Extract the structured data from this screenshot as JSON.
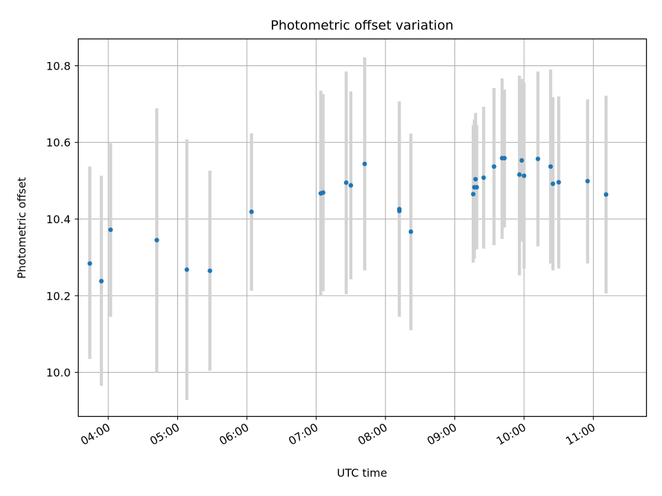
{
  "chart_data": {
    "type": "scatter",
    "title": "Photometric offset variation",
    "xlabel": "UTC time",
    "ylabel": "Photometric offset",
    "x_ticks": [
      "04:00",
      "05:00",
      "06:00",
      "07:00",
      "08:00",
      "09:00",
      "10:00",
      "11:00"
    ],
    "y_ticks": [
      "10.0",
      "10.2",
      "10.4",
      "10.6",
      "10.8"
    ],
    "xlim": [
      "03:34",
      "11:46"
    ],
    "ylim": [
      9.885,
      10.87
    ],
    "grid": true,
    "colors": {
      "point": "#1f77b4",
      "errorbar": "#d3d3d3",
      "grid": "#b0b0b0"
    },
    "points": [
      {
        "x": "03:44",
        "y": 10.284,
        "ylow": 10.035,
        "yhigh": 10.537
      },
      {
        "x": "03:54",
        "y": 10.238,
        "ylow": 9.965,
        "yhigh": 10.513
      },
      {
        "x": "04:02",
        "y": 10.372,
        "ylow": 10.145,
        "yhigh": 10.598
      },
      {
        "x": "04:42",
        "y": 10.345,
        "ylow": 10.0,
        "yhigh": 10.689
      },
      {
        "x": "05:08",
        "y": 10.268,
        "ylow": 9.928,
        "yhigh": 10.608
      },
      {
        "x": "05:28",
        "y": 10.265,
        "ylow": 10.004,
        "yhigh": 10.526
      },
      {
        "x": "06:04",
        "y": 10.419,
        "ylow": 10.213,
        "yhigh": 10.624
      },
      {
        "x": "07:04",
        "y": 10.467,
        "ylow": 10.199,
        "yhigh": 10.735
      },
      {
        "x": "07:06",
        "y": 10.469,
        "ylow": 10.212,
        "yhigh": 10.726
      },
      {
        "x": "07:26",
        "y": 10.495,
        "ylow": 10.204,
        "yhigh": 10.785
      },
      {
        "x": "07:30",
        "y": 10.488,
        "ylow": 10.243,
        "yhigh": 10.733
      },
      {
        "x": "07:42",
        "y": 10.544,
        "ylow": 10.266,
        "yhigh": 10.822
      },
      {
        "x": "08:12",
        "y": 10.426,
        "ylow": 10.145,
        "yhigh": 10.707
      },
      {
        "x": "08:12",
        "y": 10.421,
        "ylow": 10.215,
        "yhigh": 10.627
      },
      {
        "x": "08:22",
        "y": 10.367,
        "ylow": 10.11,
        "yhigh": 10.623
      },
      {
        "x": "09:16",
        "y": 10.465,
        "ylow": 10.286,
        "yhigh": 10.645
      },
      {
        "x": "09:17",
        "y": 10.483,
        "ylow": 10.297,
        "yhigh": 10.66
      },
      {
        "x": "09:18",
        "y": 10.504,
        "ylow": 10.331,
        "yhigh": 10.677
      },
      {
        "x": "09:19",
        "y": 10.483,
        "ylow": 10.321,
        "yhigh": 10.645
      },
      {
        "x": "09:25",
        "y": 10.508,
        "ylow": 10.323,
        "yhigh": 10.693
      },
      {
        "x": "09:34",
        "y": 10.537,
        "ylow": 10.332,
        "yhigh": 10.742
      },
      {
        "x": "09:41",
        "y": 10.559,
        "ylow": 10.348,
        "yhigh": 10.767
      },
      {
        "x": "09:43",
        "y": 10.559,
        "ylow": 10.378,
        "yhigh": 10.738
      },
      {
        "x": "09:56",
        "y": 10.516,
        "ylow": 10.253,
        "yhigh": 10.774
      },
      {
        "x": "09:58",
        "y": 10.553,
        "ylow": 10.341,
        "yhigh": 10.766
      },
      {
        "x": "10:00",
        "y": 10.513,
        "ylow": 10.271,
        "yhigh": 10.756
      },
      {
        "x": "10:12",
        "y": 10.557,
        "ylow": 10.329,
        "yhigh": 10.785
      },
      {
        "x": "10:23",
        "y": 10.537,
        "ylow": 10.284,
        "yhigh": 10.79
      },
      {
        "x": "10:25",
        "y": 10.492,
        "ylow": 10.266,
        "yhigh": 10.718
      },
      {
        "x": "10:30",
        "y": 10.496,
        "ylow": 10.271,
        "yhigh": 10.72
      },
      {
        "x": "10:55",
        "y": 10.499,
        "ylow": 10.284,
        "yhigh": 10.712
      },
      {
        "x": "11:11",
        "y": 10.464,
        "ylow": 10.206,
        "yhigh": 10.722
      }
    ]
  }
}
